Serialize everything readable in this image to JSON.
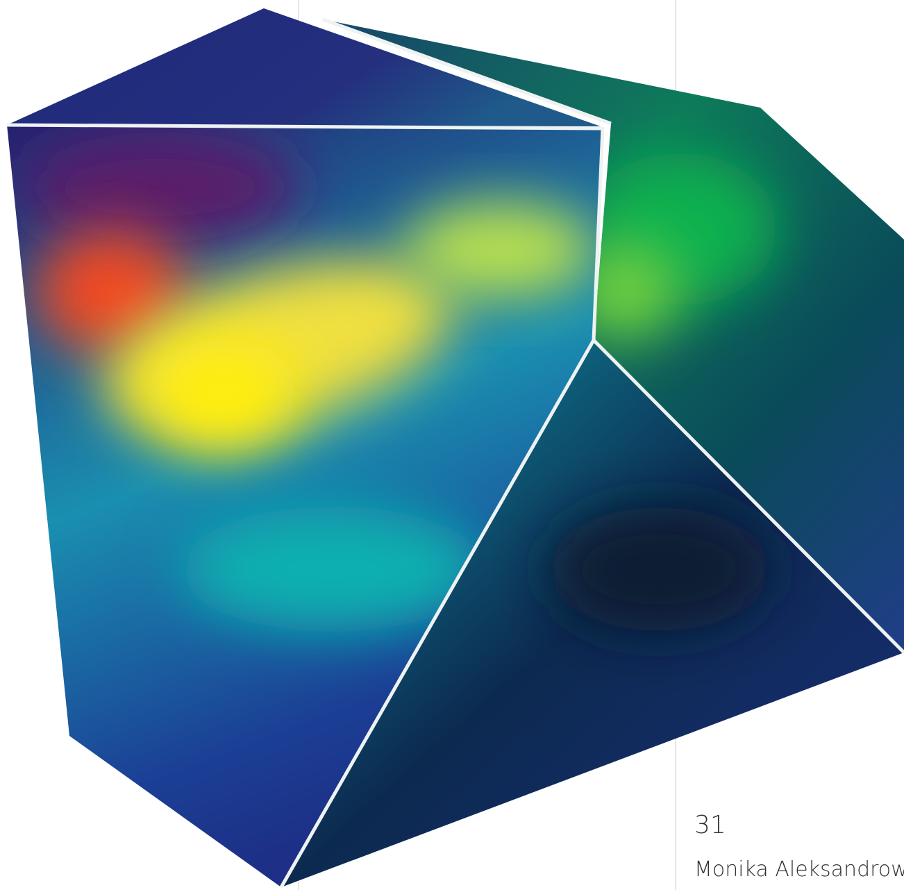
{
  "page_number": "31",
  "author": "Monika Aleksandrow"
}
